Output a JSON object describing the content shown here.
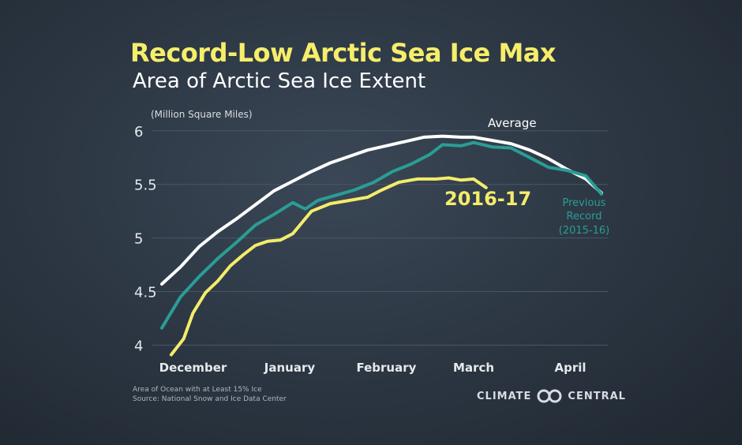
{
  "title": "Record-Low Arctic Sea Ice Max",
  "subtitle": "Area of Arctic Sea Ice Extent",
  "footnotes": [
    "Area of Ocean with at Least 15% Ice",
    "Source: National Snow and Ice Data Center"
  ],
  "logo": {
    "left": "CLIMATE",
    "right": "CENTRAL",
    "icon": "climate-central-logo"
  },
  "colors": {
    "average": "#ffffff",
    "previous": "#2a9d95",
    "current": "#f4ec6b",
    "grid": "#4a5664",
    "axis_text": "#e6e9ec"
  },
  "chart_data": {
    "type": "line",
    "ylabel": "(Million Square Miles)",
    "ylim": [
      3.9,
      6.05
    ],
    "yticks": [
      4,
      4.5,
      5,
      5.5,
      6
    ],
    "ytick_labels": [
      "4",
      "4.5",
      "5",
      "5.5",
      "6"
    ],
    "xlim": [
      0,
      141
    ],
    "x_ticks": [
      {
        "label": "December",
        "x": 10
      },
      {
        "label": "January",
        "x": 41
      },
      {
        "label": "February",
        "x": 72
      },
      {
        "label": "March",
        "x": 100
      },
      {
        "label": "April",
        "x": 131
      }
    ],
    "grid": true,
    "series": [
      {
        "name": "Average",
        "key": "average",
        "x": [
          0,
          6,
          12,
          18,
          24,
          30,
          36,
          42,
          48,
          54,
          60,
          66,
          72,
          78,
          84,
          90,
          96,
          100,
          106,
          112,
          118,
          124,
          130,
          136,
          141
        ],
        "values": [
          4.57,
          4.73,
          4.92,
          5.06,
          5.18,
          5.31,
          5.44,
          5.53,
          5.62,
          5.7,
          5.76,
          5.82,
          5.86,
          5.9,
          5.94,
          5.95,
          5.94,
          5.94,
          5.91,
          5.88,
          5.82,
          5.74,
          5.64,
          5.55,
          5.42
        ]
      },
      {
        "name": "Previous Record (2015-16)",
        "key": "previous",
        "x": [
          0,
          6,
          12,
          18,
          24,
          30,
          36,
          42,
          46,
          50,
          56,
          62,
          68,
          74,
          80,
          86,
          90,
          96,
          100,
          106,
          112,
          118,
          124,
          130,
          136,
          141
        ],
        "values": [
          4.16,
          4.45,
          4.64,
          4.81,
          4.96,
          5.12,
          5.22,
          5.33,
          5.27,
          5.35,
          5.4,
          5.45,
          5.52,
          5.62,
          5.69,
          5.78,
          5.87,
          5.86,
          5.89,
          5.85,
          5.84,
          5.75,
          5.66,
          5.63,
          5.58,
          5.41
        ]
      },
      {
        "name": "2016-17",
        "key": "current",
        "x": [
          3,
          7,
          10,
          14,
          18,
          22,
          26,
          30,
          34,
          38,
          42,
          48,
          54,
          60,
          66,
          70,
          76,
          82,
          88,
          92,
          96,
          100,
          104
        ],
        "values": [
          3.91,
          4.06,
          4.3,
          4.49,
          4.6,
          4.74,
          4.84,
          4.93,
          4.97,
          4.98,
          5.04,
          5.25,
          5.32,
          5.35,
          5.38,
          5.44,
          5.52,
          5.55,
          5.55,
          5.56,
          5.54,
          5.55,
          5.47
        ]
      }
    ],
    "annotations": [
      {
        "text": "Average",
        "series": "average"
      },
      {
        "text": "2016-17",
        "series": "current"
      },
      {
        "text": "Previous",
        "series": "previous"
      },
      {
        "text": "Record",
        "series": "previous"
      },
      {
        "text": "(2015-16)",
        "series": "previous"
      }
    ]
  }
}
